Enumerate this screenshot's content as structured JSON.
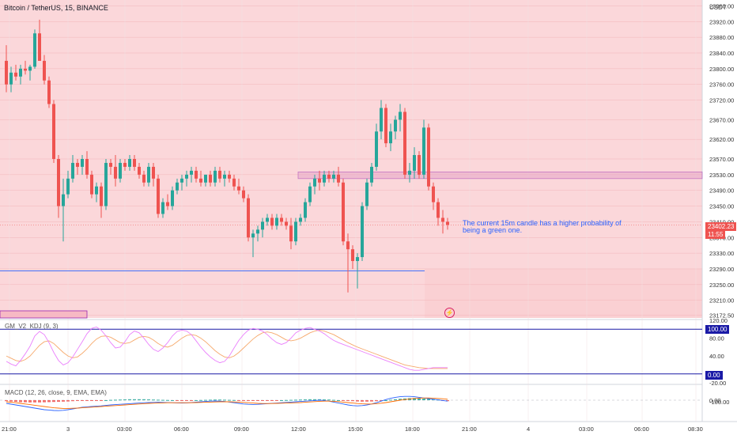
{
  "header": {
    "symbol": "Bitcoin / TetherUS, 15, BINANCE",
    "currency": "USDT"
  },
  "price_tags": {
    "last_price": "23402.23",
    "countdown": "11:55",
    "kdj_upper": "100.00",
    "kdj_lower": "0.00"
  },
  "annotation": {
    "line1": "The current 15m candle has a higher probability of",
    "line2": "being a green one."
  },
  "indicators": {
    "kdj_label": "GM_V2_KDJ (9, 3)",
    "macd_label": "MACD (12, 26, close, 9, EMA, EMA)"
  },
  "colors": {
    "up": "#26a69a",
    "down": "#ef5350",
    "background_zone": "#fbd5d7",
    "accent_blue": "#2962ff",
    "kdj_line": "#ea80fc",
    "kdj_signal": "#f6a96c",
    "macd_line": "#2962ff",
    "macd_signal": "#ff6d00",
    "box_border": "#9c27b0"
  },
  "axes": {
    "price_ticks": [
      "23960.00",
      "23920.00",
      "23880.00",
      "23840.00",
      "23800.00",
      "23760.00",
      "23720.00",
      "23670.00",
      "23620.00",
      "23570.00",
      "23530.00",
      "23490.00",
      "23450.00",
      "23410.00",
      "23370.00",
      "23330.00",
      "23290.00",
      "23250.00",
      "23210.00",
      "23172.50"
    ],
    "kdj_ticks": [
      "120.00",
      "80.00",
      "40.00",
      "-20.00"
    ],
    "macd_ticks": [
      "0.00",
      "-100.00"
    ],
    "time_labels": [
      "21:00",
      "3",
      "03:00",
      "06:00",
      "09:00",
      "12:00",
      "15:00",
      "18:00",
      "21:00",
      "4",
      "03:00",
      "06:00",
      "08:30"
    ]
  },
  "chart_data": {
    "type": "candlestick",
    "symbol": "Bitcoin / TetherUS",
    "interval": "15",
    "exchange": "BINANCE",
    "ylim": [
      23165,
      23975
    ],
    "horizontal_levels": [
      23285
    ],
    "zone": [
      23520,
      23537
    ],
    "candles": [
      [
        23820,
        23860,
        23740,
        23760
      ],
      [
        23760,
        23805,
        23740,
        23790
      ],
      [
        23790,
        23810,
        23770,
        23780
      ],
      [
        23780,
        23810,
        23760,
        23800
      ],
      [
        23800,
        23820,
        23785,
        23795
      ],
      [
        23795,
        23810,
        23770,
        23805
      ],
      [
        23805,
        23900,
        23800,
        23890
      ],
      [
        23890,
        23925,
        23820,
        23820
      ],
      [
        23820,
        23835,
        23760,
        23770
      ],
      [
        23770,
        23780,
        23700,
        23710
      ],
      [
        23710,
        23720,
        23560,
        23570
      ],
      [
        23570,
        23580,
        23420,
        23450
      ],
      [
        23450,
        23520,
        23360,
        23480
      ],
      [
        23480,
        23540,
        23470,
        23520
      ],
      [
        23520,
        23580,
        23510,
        23560
      ],
      [
        23560,
        23570,
        23530,
        23550
      ],
      [
        23550,
        23580,
        23530,
        23570
      ],
      [
        23570,
        23590,
        23520,
        23530
      ],
      [
        23530,
        23540,
        23470,
        23480
      ],
      [
        23480,
        23510,
        23460,
        23500
      ],
      [
        23500,
        23510,
        23420,
        23450
      ],
      [
        23450,
        23570,
        23440,
        23560
      ],
      [
        23560,
        23570,
        23530,
        23550
      ],
      [
        23550,
        23580,
        23500,
        23520
      ],
      [
        23520,
        23570,
        23510,
        23560
      ],
      [
        23560,
        23570,
        23540,
        23550
      ],
      [
        23550,
        23580,
        23540,
        23570
      ],
      [
        23570,
        23580,
        23540,
        23550
      ],
      [
        23550,
        23560,
        23520,
        23530
      ],
      [
        23530,
        23540,
        23500,
        23510
      ],
      [
        23510,
        23560,
        23500,
        23550
      ],
      [
        23550,
        23560,
        23500,
        23520
      ],
      [
        23520,
        23530,
        23420,
        23430
      ],
      [
        23430,
        23470,
        23420,
        23460
      ],
      [
        23460,
        23480,
        23440,
        23450
      ],
      [
        23450,
        23500,
        23440,
        23490
      ],
      [
        23490,
        23520,
        23480,
        23510
      ],
      [
        23510,
        23530,
        23490,
        23520
      ],
      [
        23520,
        23540,
        23500,
        23530
      ],
      [
        23530,
        23550,
        23510,
        23540
      ],
      [
        23540,
        23550,
        23510,
        23520
      ],
      [
        23520,
        23540,
        23500,
        23510
      ],
      [
        23510,
        23530,
        23500,
        23530
      ],
      [
        23530,
        23540,
        23500,
        23510
      ],
      [
        23510,
        23550,
        23500,
        23540
      ],
      [
        23540,
        23550,
        23510,
        23520
      ],
      [
        23520,
        23540,
        23500,
        23530
      ],
      [
        23530,
        23540,
        23510,
        23520
      ],
      [
        23520,
        23530,
        23490,
        23500
      ],
      [
        23500,
        23520,
        23480,
        23490
      ],
      [
        23490,
        23500,
        23460,
        23470
      ],
      [
        23470,
        23480,
        23360,
        23370
      ],
      [
        23370,
        23390,
        23320,
        23380
      ],
      [
        23380,
        23400,
        23360,
        23390
      ],
      [
        23390,
        23420,
        23370,
        23410
      ],
      [
        23410,
        23430,
        23400,
        23420
      ],
      [
        23420,
        23430,
        23390,
        23400
      ],
      [
        23400,
        23430,
        23390,
        23420
      ],
      [
        23420,
        23430,
        23400,
        23410
      ],
      [
        23410,
        23420,
        23390,
        23400
      ],
      [
        23400,
        23420,
        23340,
        23360
      ],
      [
        23360,
        23420,
        23350,
        23410
      ],
      [
        23410,
        23430,
        23400,
        23420
      ],
      [
        23420,
        23470,
        23410,
        23460
      ],
      [
        23460,
        23510,
        23450,
        23500
      ],
      [
        23500,
        23530,
        23480,
        23520
      ],
      [
        23520,
        23540,
        23490,
        23510
      ],
      [
        23510,
        23540,
        23500,
        23530
      ],
      [
        23530,
        23540,
        23510,
        23520
      ],
      [
        23520,
        23540,
        23510,
        23530
      ],
      [
        23530,
        23550,
        23500,
        23510
      ],
      [
        23510,
        23520,
        23350,
        23360
      ],
      [
        23360,
        23380,
        23230,
        23340
      ],
      [
        23340,
        23350,
        23290,
        23310
      ],
      [
        23310,
        23330,
        23240,
        23320
      ],
      [
        23320,
        23460,
        23310,
        23450
      ],
      [
        23450,
        23520,
        23440,
        23510
      ],
      [
        23510,
        23560,
        23500,
        23550
      ],
      [
        23550,
        23660,
        23540,
        23640
      ],
      [
        23640,
        23720,
        23620,
        23700
      ],
      [
        23700,
        23710,
        23600,
        23610
      ],
      [
        23610,
        23660,
        23590,
        23640
      ],
      [
        23640,
        23680,
        23620,
        23670
      ],
      [
        23670,
        23710,
        23640,
        23690
      ],
      [
        23690,
        23700,
        23520,
        23530
      ],
      [
        23530,
        23560,
        23510,
        23540
      ],
      [
        23540,
        23600,
        23520,
        23580
      ],
      [
        23580,
        23590,
        23520,
        23530
      ],
      [
        23530,
        23670,
        23520,
        23650
      ],
      [
        23650,
        23660,
        23490,
        23500
      ],
      [
        23500,
        23510,
        23440,
        23460
      ],
      [
        23460,
        23470,
        23400,
        23420
      ],
      [
        23420,
        23440,
        23380,
        23410
      ],
      [
        23410,
        23420,
        23390,
        23402
      ]
    ],
    "kdj": {
      "k": [
        28,
        22,
        18,
        30,
        45,
        62,
        85,
        95,
        88,
        70,
        48,
        30,
        20,
        25,
        38,
        55,
        72,
        90,
        102,
        105,
        98,
        85,
        70,
        58,
        60,
        72,
        88,
        96,
        92,
        80,
        66,
        55,
        50,
        58,
        70,
        85,
        95,
        98,
        96,
        88,
        74,
        60,
        48,
        38,
        30,
        25,
        28,
        40,
        58,
        75,
        88,
        98,
        102,
        100,
        96,
        88,
        78,
        70,
        66,
        70,
        80,
        92,
        98,
        102,
        104,
        100,
        96,
        90,
        82,
        75,
        70,
        66,
        62,
        58,
        54,
        50,
        46,
        42,
        38,
        34,
        30,
        26,
        22,
        18,
        14,
        10,
        8,
        8,
        10,
        12,
        14,
        14,
        14,
        14
      ],
      "d": [
        40,
        35,
        30,
        28,
        32,
        40,
        52,
        64,
        72,
        74,
        68,
        58,
        48,
        40,
        36,
        38,
        46,
        56,
        68,
        78,
        84,
        85,
        82,
        76,
        70,
        68,
        70,
        76,
        82,
        84,
        82,
        76,
        68,
        62,
        60,
        64,
        72,
        80,
        86,
        88,
        86,
        80,
        72,
        62,
        52,
        44,
        38,
        36,
        40,
        48,
        58,
        68,
        78,
        86,
        92,
        94,
        92,
        88,
        82,
        76,
        74,
        76,
        80,
        86,
        92,
        96,
        98,
        96,
        92,
        88,
        82,
        76,
        70,
        65,
        60,
        56,
        52,
        48,
        44,
        40,
        36,
        32,
        28,
        24,
        20,
        18,
        16,
        14,
        13,
        12,
        12,
        12,
        12,
        12
      ]
    },
    "macd": {
      "macd": [
        -20,
        -25,
        -30,
        -35,
        -40,
        -45,
        -50,
        -55,
        -60,
        -62,
        -65,
        -66,
        -64,
        -60,
        -55,
        -50,
        -45,
        -42,
        -40,
        -38,
        -36,
        -33,
        -30,
        -28,
        -26,
        -24,
        -22,
        -20,
        -18,
        -16,
        -15,
        -14,
        -13,
        -14,
        -15,
        -16,
        -17,
        -18,
        -17,
        -15,
        -12,
        -10,
        -8,
        -6,
        -5,
        -6,
        -8,
        -12,
        -16,
        -20,
        -24,
        -26,
        -27,
        -26,
        -24,
        -22,
        -20,
        -18,
        -16,
        -14,
        -12,
        -10,
        -8,
        -6,
        -4,
        -2,
        0,
        -2,
        -6,
        -12,
        -18,
        -24,
        -30,
        -34,
        -36,
        -34,
        -30,
        -24,
        -16,
        -6,
        4,
        12,
        18,
        22,
        24,
        24,
        22,
        18,
        14,
        10,
        6,
        2,
        -2,
        -6
      ],
      "signal": [
        -10,
        -13,
        -16,
        -20,
        -24,
        -28,
        -32,
        -36,
        -40,
        -44,
        -48,
        -50,
        -52,
        -52,
        -51,
        -50,
        -48,
        -46,
        -44,
        -42,
        -40,
        -38,
        -36,
        -34,
        -32,
        -30,
        -28,
        -26,
        -24,
        -22,
        -20,
        -19,
        -18,
        -17,
        -16,
        -16,
        -16,
        -16,
        -16,
        -16,
        -15,
        -14,
        -13,
        -12,
        -11,
        -10,
        -10,
        -10,
        -11,
        -12,
        -14,
        -16,
        -18,
        -20,
        -21,
        -21,
        -21,
        -20,
        -19,
        -18,
        -17,
        -16,
        -15,
        -13,
        -11,
        -9,
        -7,
        -6,
        -6,
        -7,
        -9,
        -12,
        -15,
        -18,
        -21,
        -23,
        -24,
        -24,
        -22,
        -19,
        -15,
        -10,
        -5,
        0,
        4,
        8,
        11,
        13,
        14,
        14,
        13,
        11,
        9,
        6
      ],
      "hist": [
        -6,
        -8,
        -10,
        -12,
        -13,
        -14,
        -14,
        -14,
        -13,
        -12,
        -11,
        -10,
        -9,
        -8,
        -6,
        -5,
        -4,
        -3,
        -3,
        -2,
        -1,
        0,
        2,
        3,
        4,
        5,
        6,
        6,
        6,
        6,
        5,
        4,
        3,
        2,
        1,
        0,
        -1,
        -2,
        -2,
        -1,
        0,
        1,
        2,
        3,
        4,
        4,
        3,
        2,
        1,
        -1,
        -3,
        -4,
        -5,
        -5,
        -4,
        -3,
        -2,
        -1,
        0,
        1,
        2,
        3,
        4,
        5,
        6,
        6,
        6,
        5,
        4,
        2,
        0,
        -2,
        -4,
        -6,
        -8,
        -9,
        -9,
        -8,
        -6,
        -3,
        0,
        3,
        6,
        9,
        11,
        13,
        14,
        12,
        10,
        8,
        6,
        4,
        -4,
        -6
      ]
    }
  }
}
